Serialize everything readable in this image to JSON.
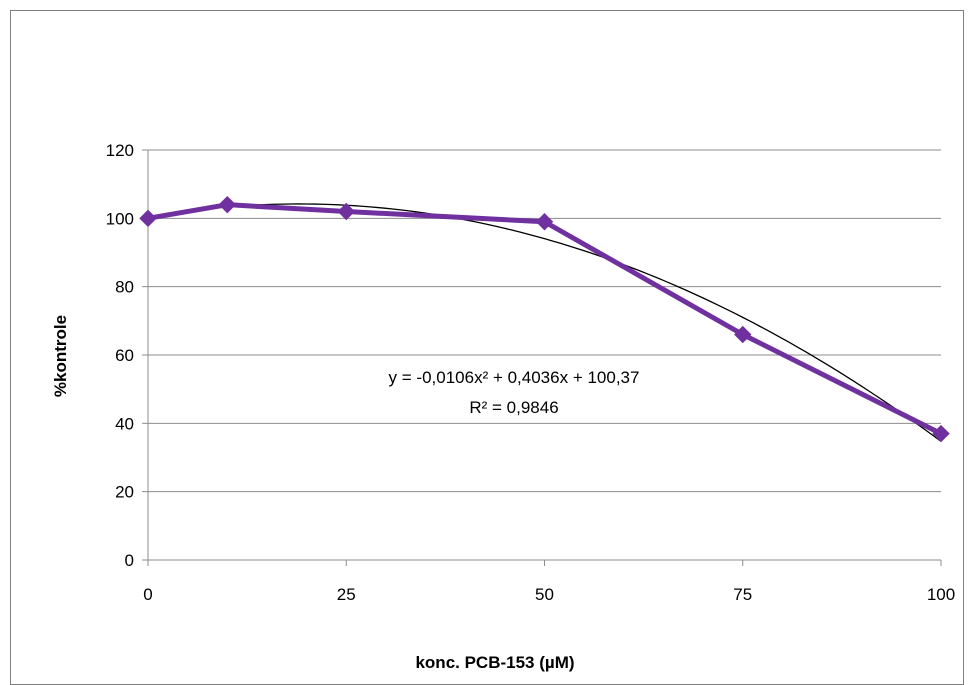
{
  "chart_data": {
    "type": "line",
    "x": [
      0,
      10,
      25,
      50,
      75,
      100
    ],
    "x_tick_labels": [
      "0",
      "25",
      "50",
      "75",
      "100"
    ],
    "x_ticks": [
      0,
      25,
      50,
      75,
      100
    ],
    "y_ticks": [
      0,
      20,
      40,
      60,
      80,
      100,
      120
    ],
    "xlim": [
      0,
      100
    ],
    "ylim": [
      0,
      120
    ],
    "xlabel": "konc. PCB-153 (µM)",
    "ylabel": "%kontrole",
    "series": [
      {
        "values": [
          100,
          104,
          102,
          99,
          66,
          37
        ],
        "color": "#7030a0",
        "marker": "diamond"
      }
    ],
    "trendline": {
      "type": "polynomial",
      "order": 2,
      "coefficients": [
        -0.0106,
        0.4036,
        100.37
      ],
      "color": "#000000",
      "equation_label": "y = -0,0106x² + 0,4036x + 100,37",
      "r2_label": "R² = 0,9846"
    },
    "grid": {
      "horizontal": true,
      "vertical": false
    },
    "legend": "none"
  }
}
